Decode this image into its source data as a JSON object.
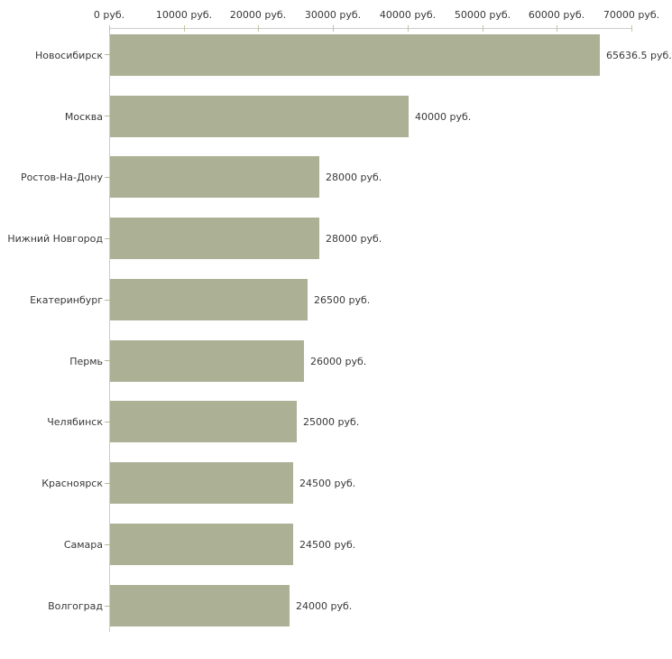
{
  "chart_data": {
    "type": "bar",
    "orientation": "horizontal",
    "title": "",
    "categories": [
      "Новосибирск",
      "Москва",
      "Ростов-На-Дону",
      "Нижний Новгород",
      "Екатеринбург",
      "Пермь",
      "Челябинск",
      "Красноярск",
      "Самара",
      "Волгоград"
    ],
    "values": [
      65636.5,
      40000,
      28000,
      28000,
      26500,
      26000,
      25000,
      24500,
      24500,
      24000
    ],
    "value_labels": [
      "65636.5 руб.",
      "40000 руб.",
      "28000 руб.",
      "28000 руб.",
      "26500 руб.",
      "26000 руб.",
      "25000 руб.",
      "24500 руб.",
      "24500 руб.",
      "24000 руб."
    ],
    "x_axis": {
      "min": 0,
      "max": 70000,
      "tick_interval": 10000,
      "position": "top",
      "tick_labels": [
        "0 руб.",
        "10000 руб.",
        "20000 руб.",
        "30000 руб.",
        "40000 руб.",
        "50000 руб.",
        "60000 руб.",
        "70000 руб."
      ]
    },
    "unit": "руб.",
    "grid": false,
    "legend": false,
    "colors": {
      "bar": "#acb196",
      "axis_line": "#cccccc",
      "tick_mark": "#c1c49e",
      "text": "#383838",
      "background": "#ffffff"
    }
  }
}
